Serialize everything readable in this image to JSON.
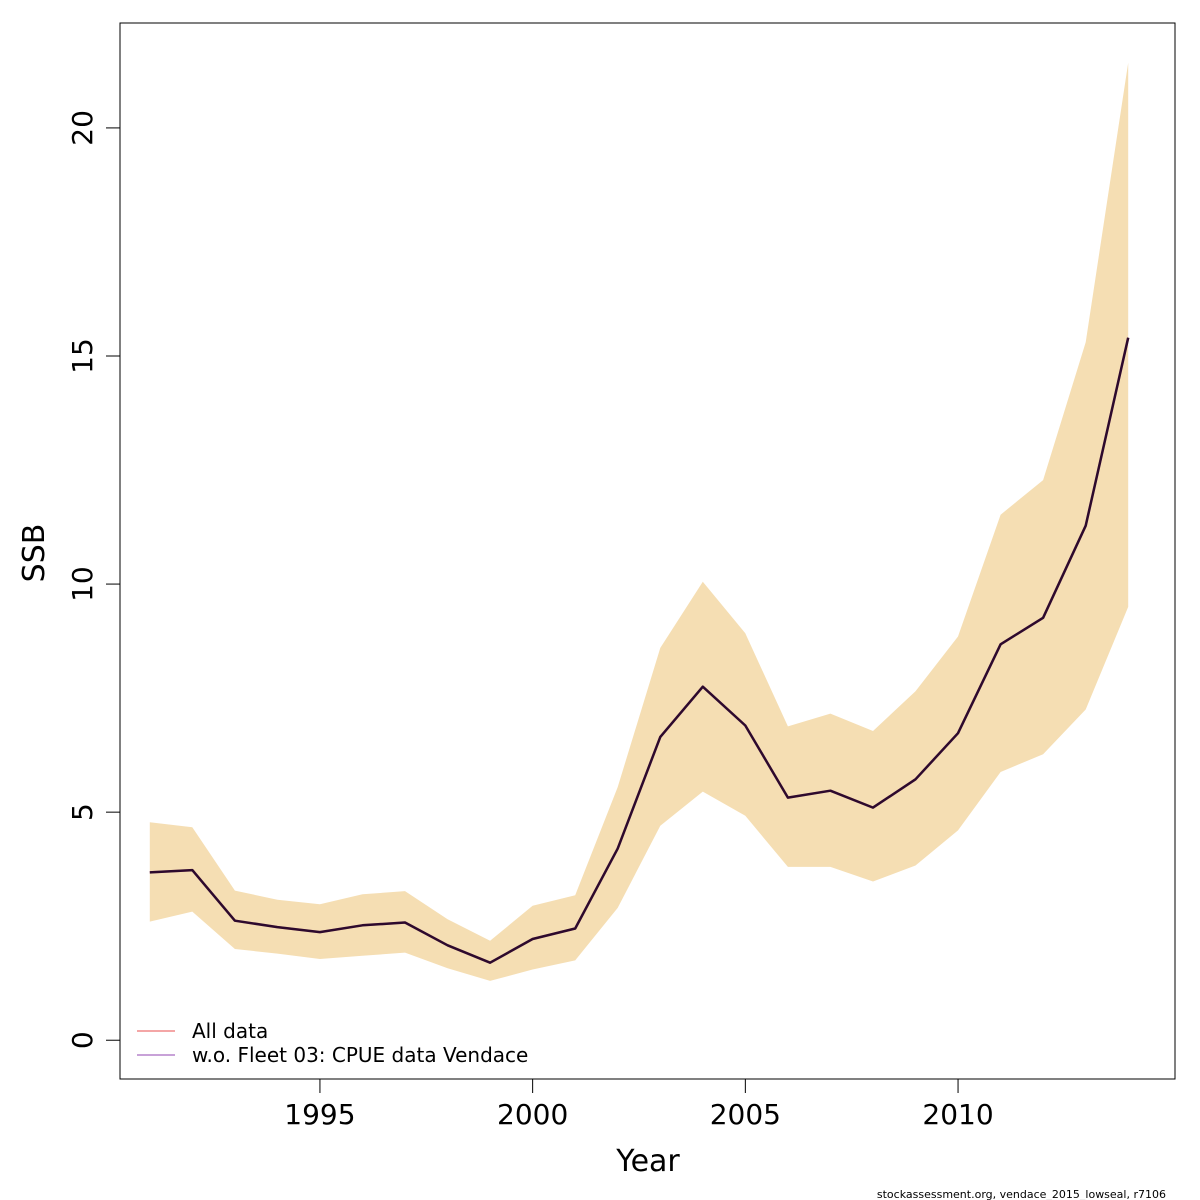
{
  "chart_data": {
    "type": "line",
    "xlabel": "Year",
    "ylabel": "SSB",
    "xlim": [
      1990.3,
      2015.1
    ],
    "ylim": [
      -0.85,
      22.3
    ],
    "x_ticks": [
      1995,
      2000,
      2005,
      2010
    ],
    "y_ticks": [
      0,
      5,
      10,
      15,
      20
    ],
    "grid": false,
    "legend_position": "bottom-left",
    "x": [
      1991,
      1992,
      1993,
      1994,
      1995,
      1996,
      1997,
      1998,
      1999,
      2000,
      2001,
      2002,
      2003,
      2004,
      2005,
      2006,
      2007,
      2008,
      2009,
      2010,
      2011,
      2012,
      2013,
      2014
    ],
    "series": [
      {
        "name": "All data",
        "color": "#f4a6a6",
        "values": [
          3.68,
          3.73,
          2.62,
          2.48,
          2.37,
          2.52,
          2.58,
          2.08,
          1.7,
          2.22,
          2.45,
          4.2,
          6.65,
          7.75,
          6.9,
          5.32,
          5.47,
          5.1,
          5.72,
          6.73,
          8.68,
          9.26,
          11.28,
          15.4
        ]
      },
      {
        "name": "w.o. Fleet 03:  CPUE data Vendace",
        "color": "#c8a2d8",
        "values": [
          3.68,
          3.73,
          2.62,
          2.48,
          2.37,
          2.52,
          2.58,
          2.08,
          1.7,
          2.22,
          2.45,
          4.2,
          6.65,
          7.75,
          6.9,
          5.32,
          5.47,
          5.1,
          5.72,
          6.73,
          8.68,
          9.26,
          11.28,
          15.4
        ]
      }
    ],
    "band": {
      "color": "#f5deb3",
      "lower": [
        2.6,
        2.82,
        2.0,
        1.9,
        1.78,
        1.85,
        1.92,
        1.58,
        1.3,
        1.55,
        1.75,
        2.9,
        4.7,
        5.45,
        4.92,
        3.8,
        3.8,
        3.48,
        3.83,
        4.6,
        5.88,
        6.27,
        7.25,
        9.5
      ],
      "upper": [
        4.78,
        4.67,
        3.28,
        3.08,
        2.98,
        3.2,
        3.27,
        2.65,
        2.18,
        2.95,
        3.18,
        5.55,
        8.6,
        10.05,
        8.92,
        6.88,
        7.16,
        6.78,
        7.65,
        8.85,
        11.52,
        12.28,
        15.3,
        21.43
      ]
    },
    "line_color": "#2d0a2d",
    "caption": "stockassessment.org, vendace_2015_lowseal, r7106"
  }
}
